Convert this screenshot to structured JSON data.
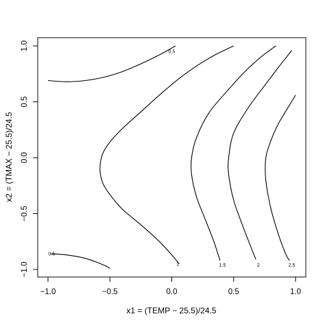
{
  "chart_data": {
    "type": "contour",
    "title": "",
    "xlabel": "x1 = (TEMP − 25.5)/24.5",
    "ylabel": "x2 = (TMAX − 25.5)/24.5",
    "xlim": [
      -1.0,
      1.0
    ],
    "ylim": [
      -1.0,
      1.0
    ],
    "x_ticks": [
      -1.0,
      -0.5,
      0.0,
      0.5,
      1.0
    ],
    "x_tick_labels": [
      "−1.0",
      "−0.5",
      "0.0",
      "0.5",
      "1.0"
    ],
    "y_ticks": [
      -1.0,
      -0.5,
      0.0,
      0.5,
      1.0
    ],
    "y_tick_labels": [
      "−1.0",
      "−0.5",
      "0.0",
      "0.5",
      "1.0"
    ],
    "grid": false,
    "series": [
      {
        "level": "0.5",
        "points": [
          [
            -1.0,
            0.69
          ],
          [
            -0.85,
            0.68
          ],
          [
            -0.7,
            0.69
          ],
          [
            -0.55,
            0.72
          ],
          [
            -0.4,
            0.77
          ],
          [
            -0.25,
            0.84
          ],
          [
            -0.1,
            0.92
          ],
          [
            0.03,
            1.0
          ]
        ],
        "label_at": [
          0.0,
          0.95
        ]
      },
      {
        "level": "0.5",
        "points": [
          [
            -0.98,
            -0.86
          ],
          [
            -0.85,
            -0.87
          ],
          [
            -0.7,
            -0.9
          ],
          [
            -0.55,
            -0.96
          ],
          [
            -0.5,
            -0.99
          ]
        ],
        "label_at": [
          -0.97,
          -0.86
        ]
      },
      {
        "level": "1",
        "points": [
          [
            0.5,
            1.0
          ],
          [
            0.35,
            0.92
          ],
          [
            0.2,
            0.82
          ],
          [
            0.05,
            0.7
          ],
          [
            -0.1,
            0.56
          ],
          [
            -0.25,
            0.41
          ],
          [
            -0.4,
            0.26
          ],
          [
            -0.5,
            0.14
          ],
          [
            -0.56,
            0.03
          ],
          [
            -0.58,
            -0.1
          ],
          [
            -0.56,
            -0.22
          ],
          [
            -0.5,
            -0.33
          ],
          [
            -0.4,
            -0.46
          ],
          [
            -0.25,
            -0.6
          ],
          [
            -0.1,
            -0.75
          ],
          [
            0.0,
            -0.87
          ],
          [
            0.06,
            -0.95
          ]
        ],
        "label_at": [
          0.05,
          -0.95
        ]
      },
      {
        "level": "1.5",
        "points": [
          [
            0.84,
            1.0
          ],
          [
            0.72,
            0.9
          ],
          [
            0.6,
            0.78
          ],
          [
            0.45,
            0.6
          ],
          [
            0.3,
            0.4
          ],
          [
            0.2,
            0.18
          ],
          [
            0.16,
            0.0
          ],
          [
            0.16,
            -0.15
          ],
          [
            0.2,
            -0.35
          ],
          [
            0.27,
            -0.55
          ],
          [
            0.34,
            -0.75
          ],
          [
            0.39,
            -0.92
          ]
        ],
        "label_at": [
          0.41,
          -0.96
        ]
      },
      {
        "level": "2",
        "points": [
          [
            0.97,
            0.96
          ],
          [
            0.87,
            0.82
          ],
          [
            0.76,
            0.66
          ],
          [
            0.62,
            0.45
          ],
          [
            0.5,
            0.22
          ],
          [
            0.46,
            0.0
          ],
          [
            0.46,
            -0.15
          ],
          [
            0.5,
            -0.38
          ],
          [
            0.57,
            -0.6
          ],
          [
            0.64,
            -0.8
          ],
          [
            0.68,
            -0.91
          ]
        ],
        "label_at": [
          0.7,
          -0.96
        ]
      },
      {
        "level": "2.5",
        "points": [
          [
            1.0,
            0.56
          ],
          [
            0.94,
            0.45
          ],
          [
            0.86,
            0.3
          ],
          [
            0.8,
            0.15
          ],
          [
            0.76,
            0.0
          ],
          [
            0.76,
            -0.2
          ],
          [
            0.8,
            -0.45
          ],
          [
            0.86,
            -0.68
          ],
          [
            0.92,
            -0.86
          ],
          [
            0.95,
            -0.92
          ]
        ],
        "label_at": [
          0.97,
          -0.96
        ]
      }
    ]
  }
}
